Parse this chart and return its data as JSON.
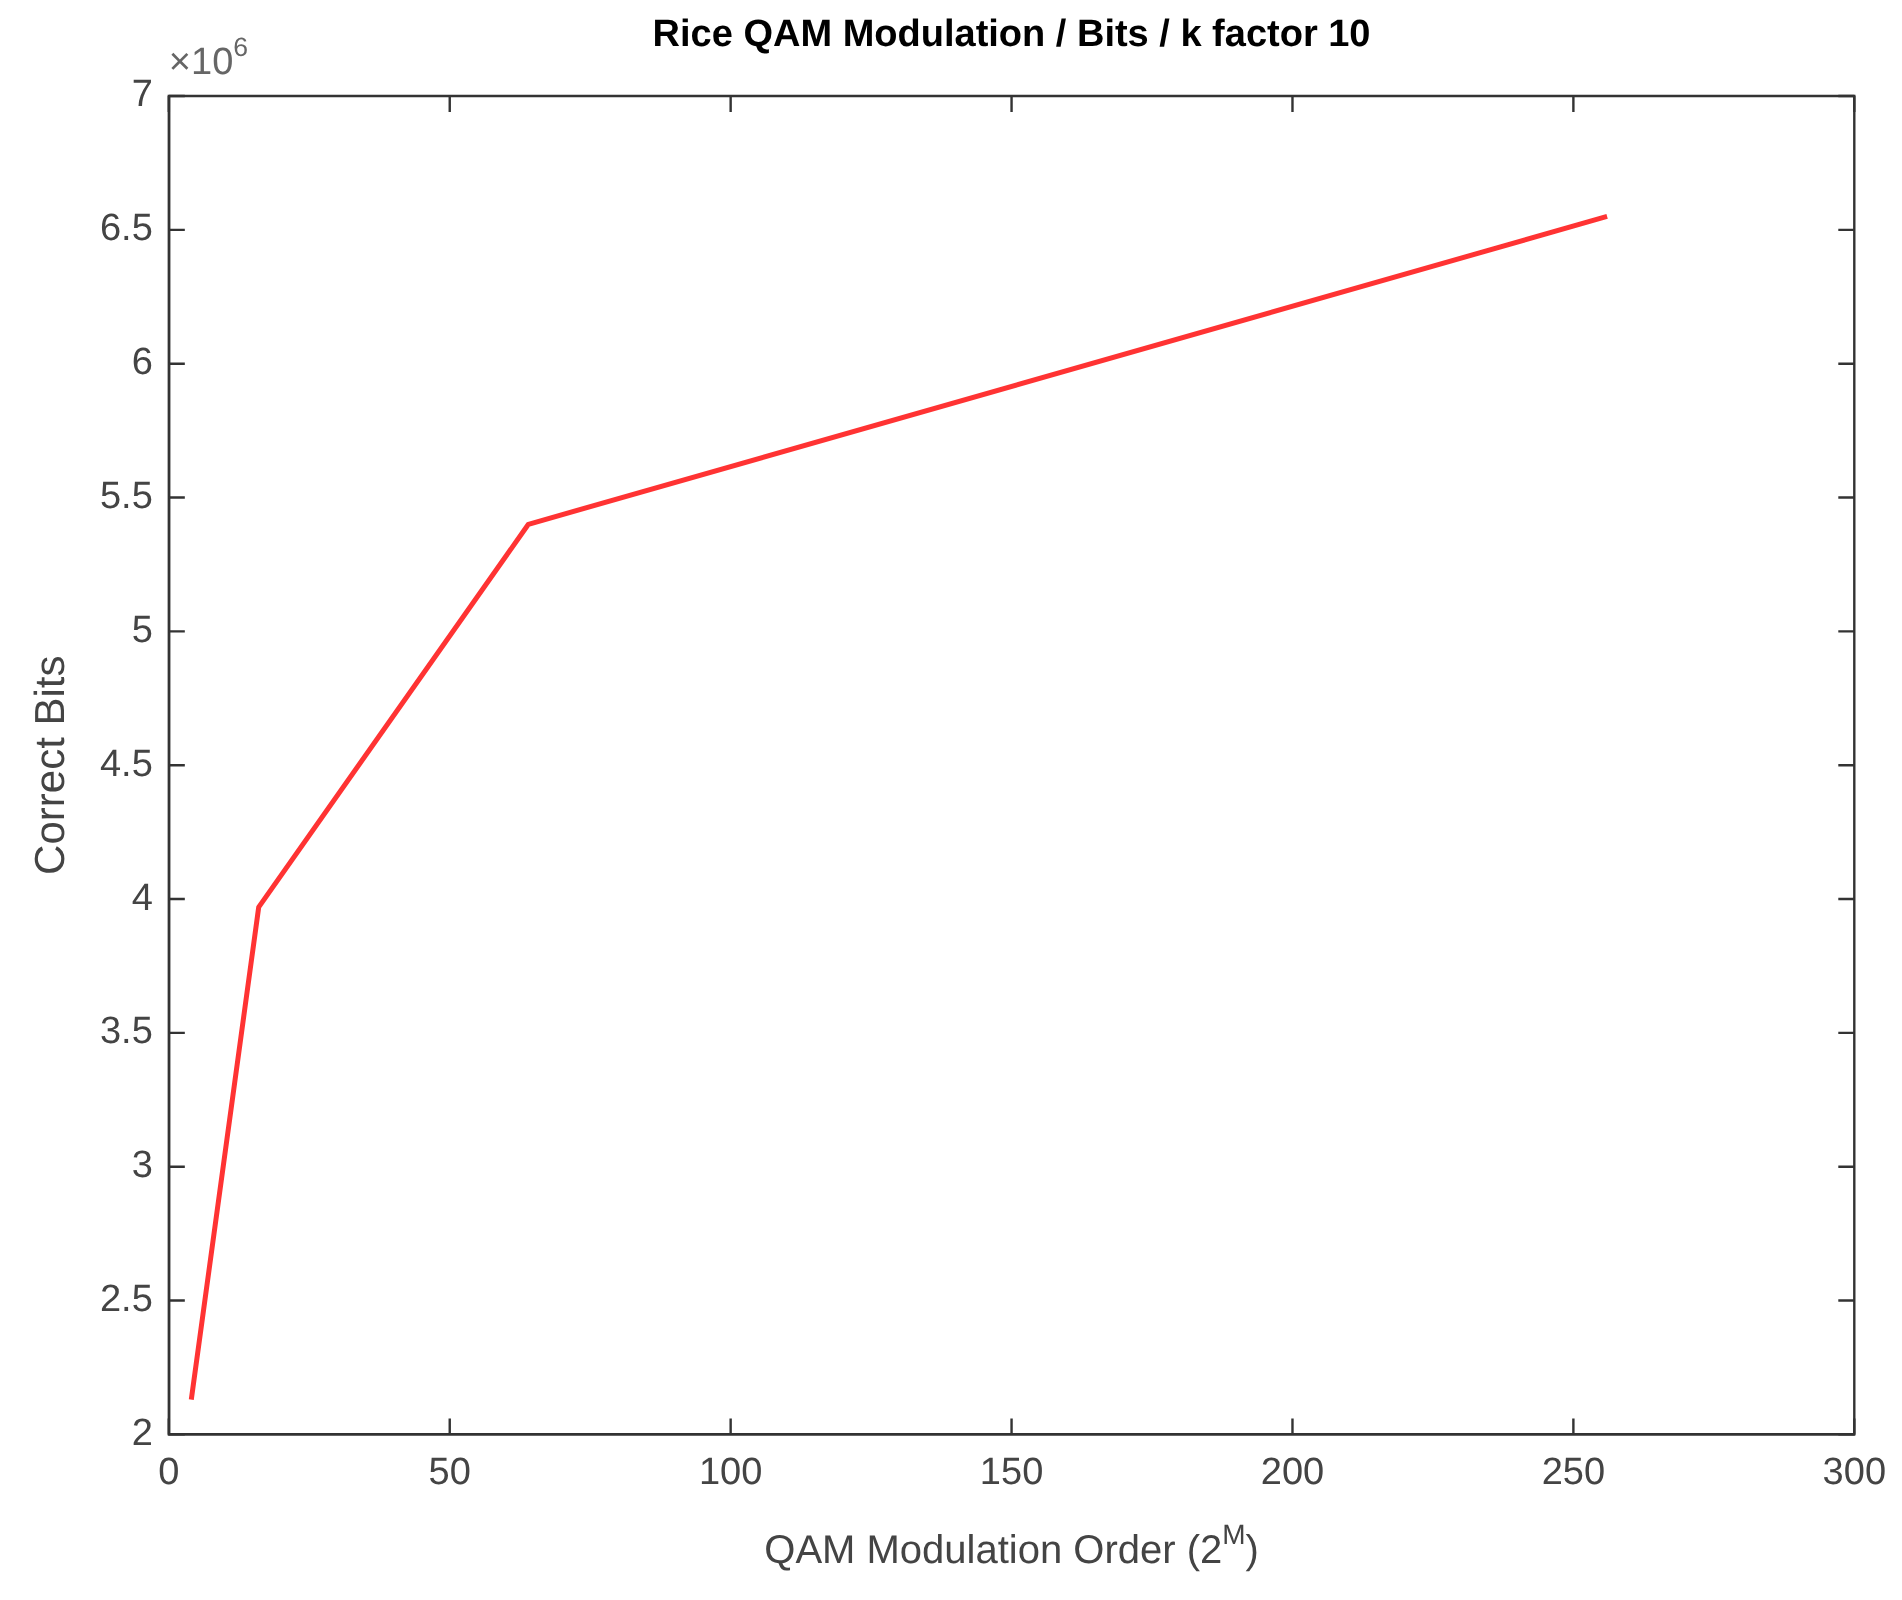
{
  "chart_data": {
    "type": "line",
    "title": "Rice QAM Modulation / Bits / k factor 10",
    "xlabel": "QAM Modulation Order (2$^{M}$)",
    "ylabel": "Correct Bits",
    "annotations": [
      "×10$^{6}$"
    ],
    "x": [
      4,
      16,
      64,
      256
    ],
    "series": [
      {
        "color": "#ff3333",
        "values": [
          2.13,
          3.97,
          5.4,
          6.55
        ]
      }
    ],
    "xlim": [
      0,
      300
    ],
    "xticks": [
      0,
      50,
      100,
      150,
      200,
      250,
      300
    ],
    "ylim": [
      2,
      7
    ],
    "yticks": [
      2,
      2.5,
      3,
      3.5,
      4,
      4.5,
      5,
      5.5,
      6,
      6.5,
      7
    ],
    "grid": false,
    "legend": false,
    "marker": "none",
    "line_style": "solid"
  }
}
